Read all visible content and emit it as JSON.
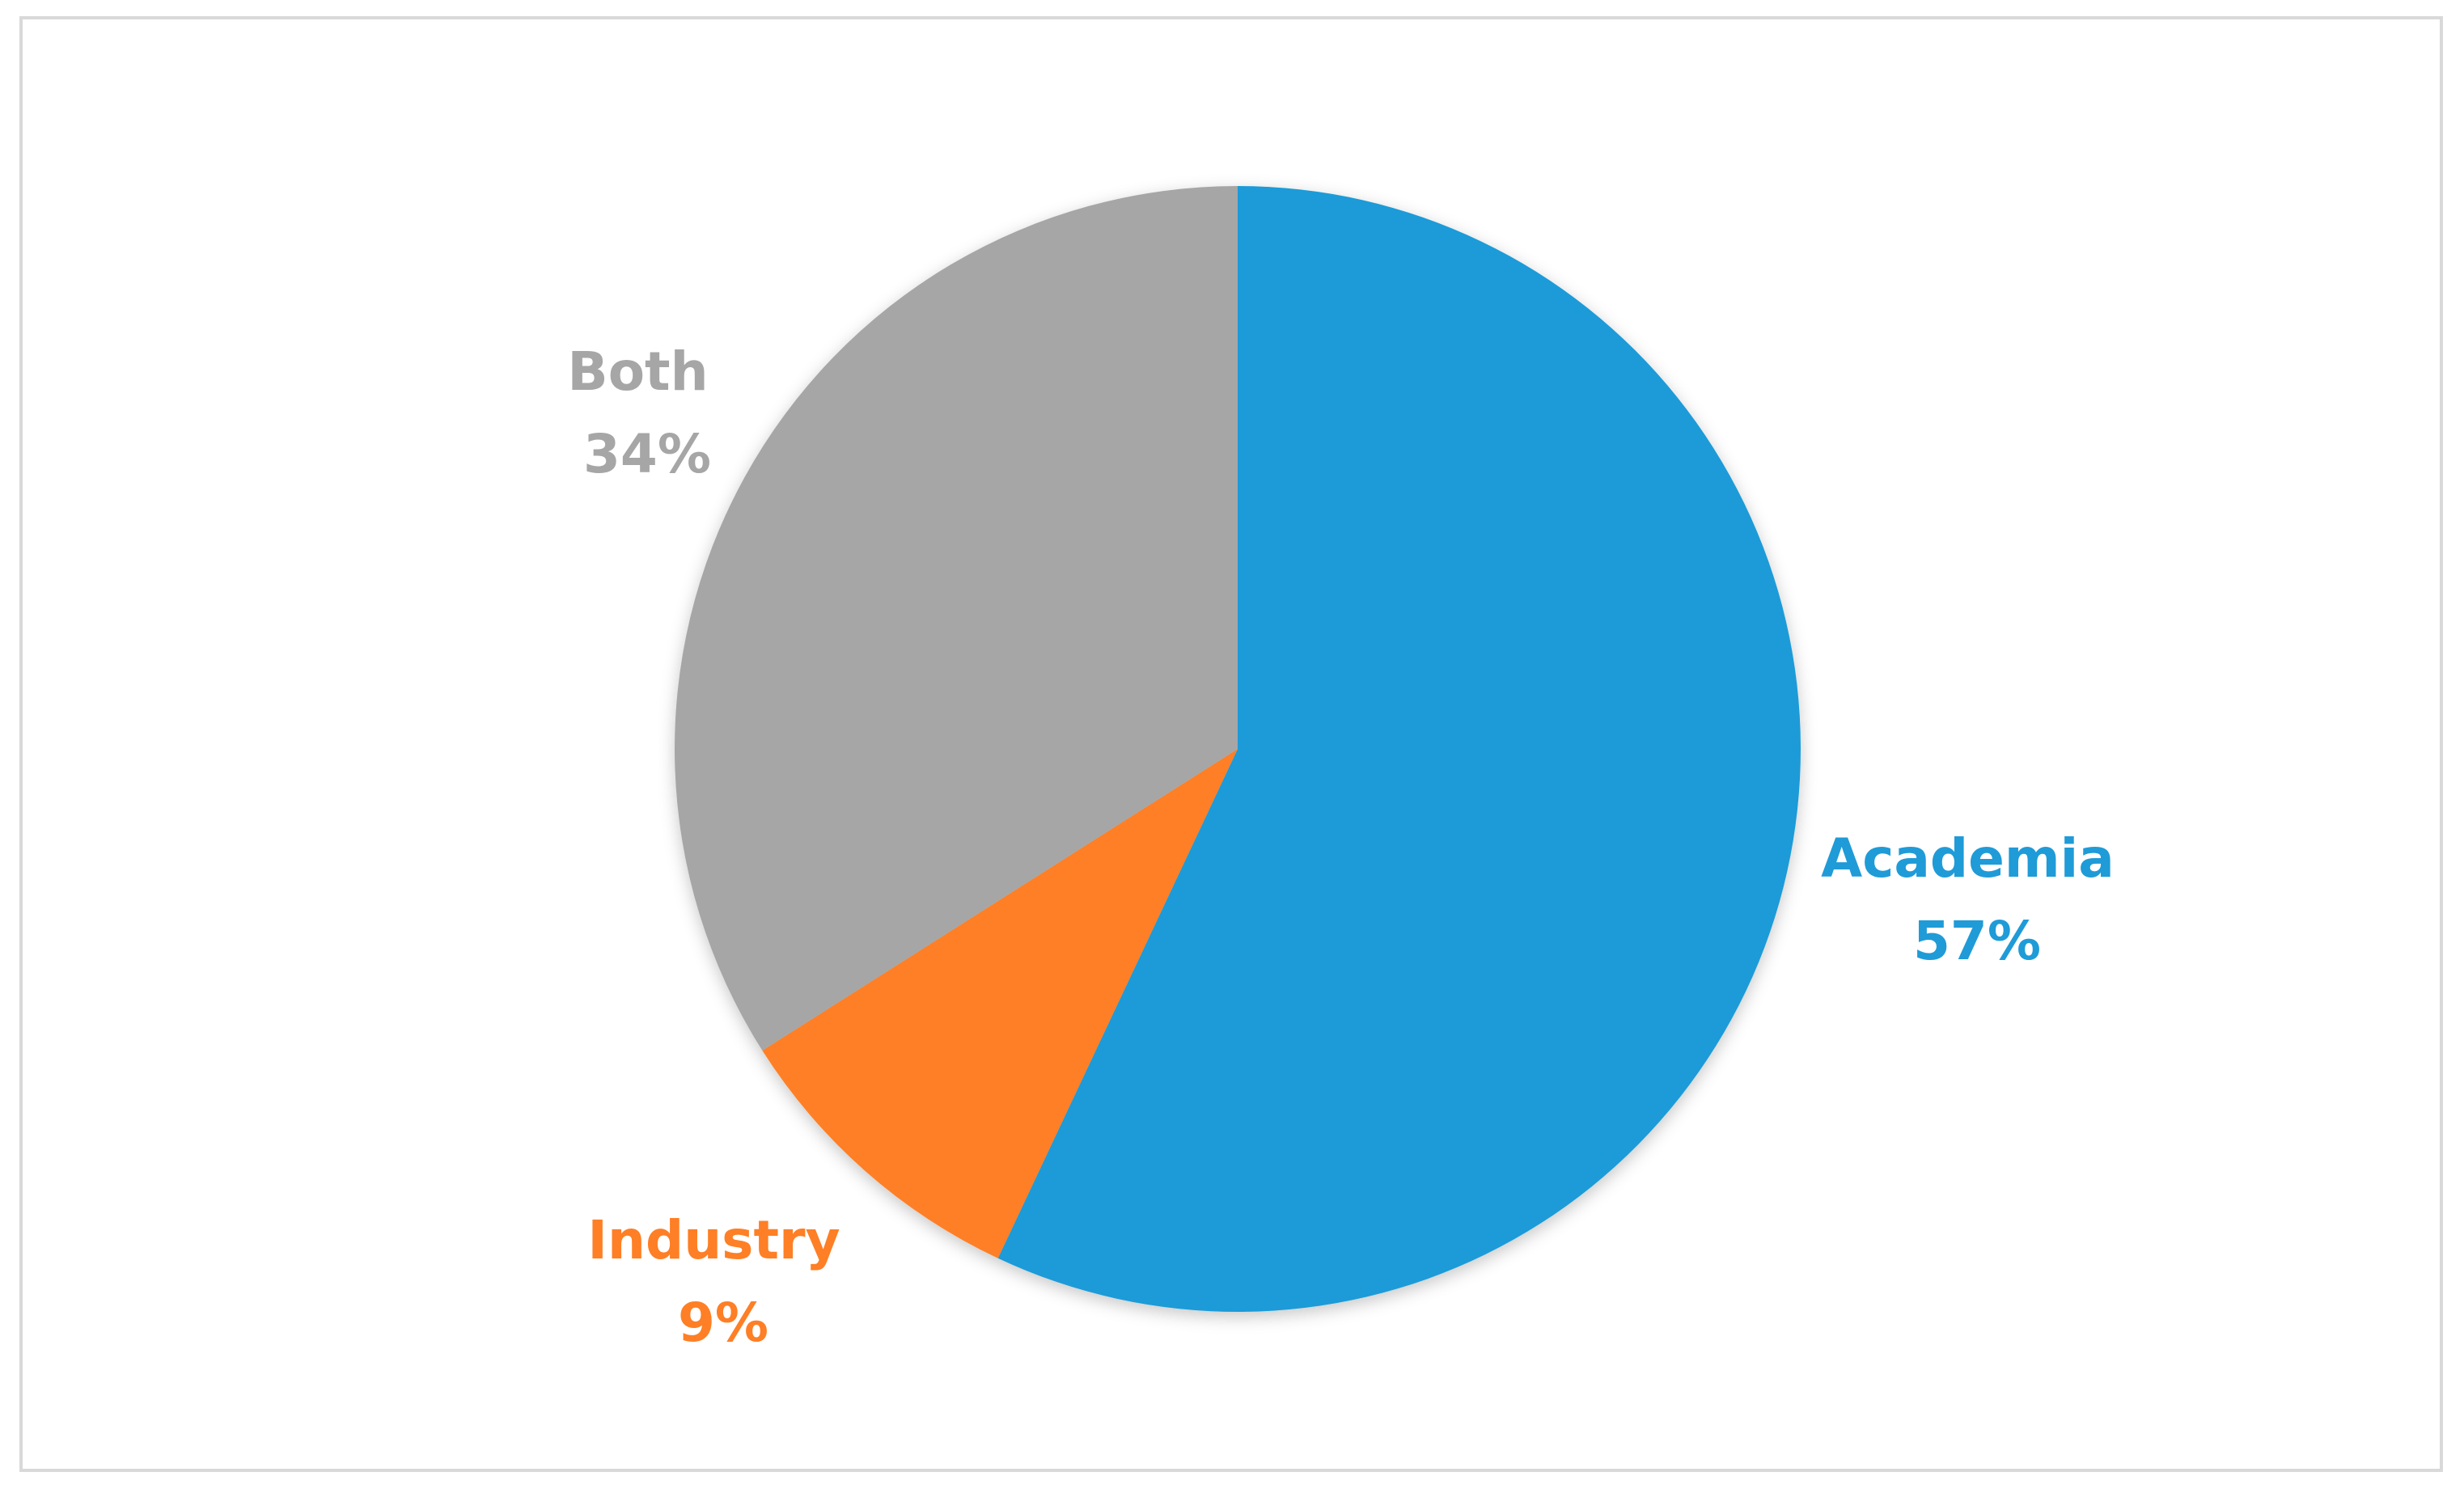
{
  "chart_data": {
    "type": "pie",
    "start_angle_deg": 0,
    "direction": "clockwise",
    "slices": [
      {
        "label": "Academia",
        "value": 57,
        "value_label": "57%",
        "color": "#1f9bd8"
      },
      {
        "label": "Industry",
        "value": 9,
        "value_label": "9%",
        "color": "#fe7f25"
      },
      {
        "label": "Both",
        "value": 34,
        "value_label": "34%",
        "color": "#a6a6a6"
      }
    ],
    "legend": "none",
    "labels_position": "outside"
  }
}
